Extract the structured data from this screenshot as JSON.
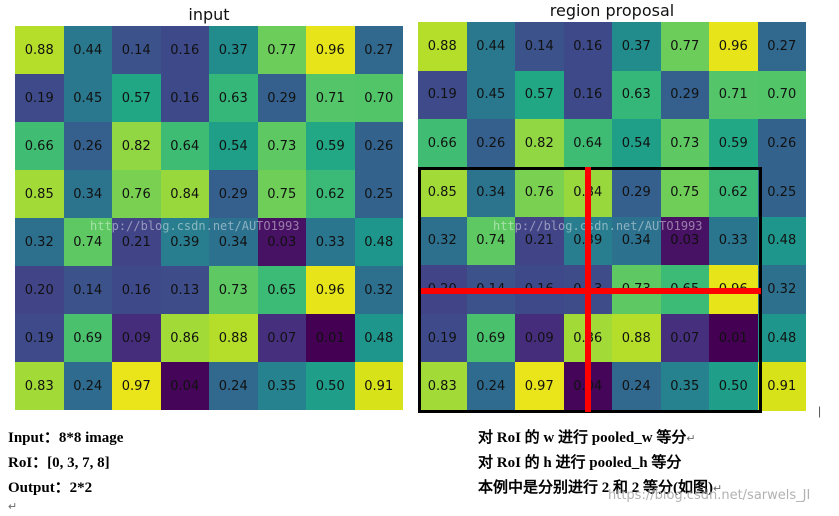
{
  "titles": {
    "input": "input",
    "proposal": "region proposal"
  },
  "watermark": "http://blog.csdn.net/AUTO1993",
  "bottom_watermark": "https://blog.csdn.net/sarwels_JI",
  "grid": {
    "values": [
      [
        "0.88",
        "0.44",
        "0.14",
        "0.16",
        "0.37",
        "0.77",
        "0.96",
        "0.27"
      ],
      [
        "0.19",
        "0.45",
        "0.57",
        "0.16",
        "0.63",
        "0.29",
        "0.71",
        "0.70"
      ],
      [
        "0.66",
        "0.26",
        "0.82",
        "0.64",
        "0.54",
        "0.73",
        "0.59",
        "0.26"
      ],
      [
        "0.85",
        "0.34",
        "0.76",
        "0.84",
        "0.29",
        "0.75",
        "0.62",
        "0.25"
      ],
      [
        "0.32",
        "0.74",
        "0.21",
        "0.39",
        "0.34",
        "0.03",
        "0.33",
        "0.48"
      ],
      [
        "0.20",
        "0.14",
        "0.16",
        "0.13",
        "0.73",
        "0.65",
        "0.96",
        "0.32"
      ],
      [
        "0.19",
        "0.69",
        "0.09",
        "0.86",
        "0.88",
        "0.07",
        "0.01",
        "0.48"
      ],
      [
        "0.83",
        "0.24",
        "0.97",
        "0.04",
        "0.24",
        "0.35",
        "0.50",
        "0.91"
      ]
    ],
    "colors": [
      [
        "#b5de2b",
        "#2a788e",
        "#3b528b",
        "#3e4989",
        "#228c8d",
        "#6ccd5a",
        "#e7e419",
        "#31688e"
      ],
      [
        "#3e4a89",
        "#2a788e",
        "#22a785",
        "#3e4989",
        "#35b779",
        "#35608d",
        "#54c568",
        "#52c569"
      ],
      [
        "#40bd72",
        "#35608d",
        "#90d743",
        "#3fbc73",
        "#1f9f88",
        "#5ec962",
        "#22a884",
        "#33628d"
      ],
      [
        "#a2da37",
        "#2c738e",
        "#7ad151",
        "#99d83d",
        "#35608d",
        "#6ece58",
        "#3aba76",
        "#33638d"
      ],
      [
        "#2d708e",
        "#5ec962",
        "#414487",
        "#287d8e",
        "#2c718e",
        "#471164",
        "#2a768e",
        "#1f968b"
      ],
      [
        "#414487",
        "#3b528b",
        "#3e4989",
        "#3e4c8a",
        "#5ec962",
        "#3bbb75",
        "#e7e419",
        "#2d708e"
      ],
      [
        "#3e4a89",
        "#4ac16d",
        "#462d7c",
        "#a2da37",
        "#b5de2b",
        "#46307e",
        "#440154",
        "#1f968b"
      ],
      [
        "#a2da37",
        "#2f6b8e",
        "#eae51a",
        "#450559",
        "#31688e",
        "#26828e",
        "#1f9e89",
        "#d8e219"
      ]
    ]
  },
  "notes": {
    "left": [
      "Input：8*8 image",
      "RoI：[0, 3, 7, 8]",
      "Output：2*2"
    ],
    "right": [
      "对 RoI 的 w 进行 pooled_w 等分",
      "对 RoI 的 h 进行 pooled_h 等分",
      "本例中是分别进行 2 和 2 等分(如图)"
    ]
  }
}
